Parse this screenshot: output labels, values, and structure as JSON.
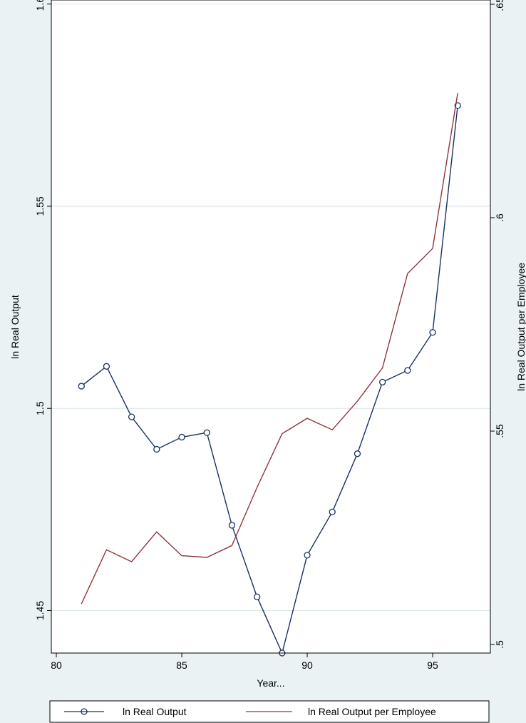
{
  "chart_data": {
    "type": "line",
    "xlabel": "Year...",
    "ylabel_left": "ln Real Output",
    "ylabel_right": "ln Real Output per Employee",
    "xlim": [
      79.8,
      97.3
    ],
    "xticks": [
      80,
      85,
      90,
      95
    ],
    "ylim_left": [
      1.4395,
      1.601
    ],
    "yticks_left": [
      1.45,
      1.5,
      1.55,
      1.6
    ],
    "ylim_right": [
      0.498,
      0.651
    ],
    "yticks_right": [
      0.5,
      0.55,
      0.6,
      0.65
    ],
    "grid": true,
    "legend_position": "bottom",
    "x": [
      81,
      82,
      83,
      84,
      85,
      86,
      87,
      88,
      89,
      90,
      91,
      92,
      93,
      94,
      95,
      96
    ],
    "series": [
      {
        "name": "ln Real Output",
        "axis": "left",
        "color": "#1a3161",
        "marker": "circle",
        "values": [
          1.5055,
          1.5104,
          1.4979,
          1.4899,
          1.4929,
          1.494,
          1.4711,
          1.4534,
          1.4395,
          1.4637,
          1.4744,
          1.4888,
          1.5065,
          1.5094,
          1.5188,
          1.5749
        ]
      },
      {
        "name": "ln Real Output per Employee",
        "axis": "right",
        "color": "#90353b",
        "marker": "none",
        "values": [
          0.5095,
          0.5222,
          0.5194,
          0.5264,
          0.5208,
          0.5204,
          0.5232,
          0.5368,
          0.5494,
          0.553,
          0.5503,
          0.557,
          0.5648,
          0.5869,
          0.5928,
          0.6292
        ]
      }
    ]
  }
}
